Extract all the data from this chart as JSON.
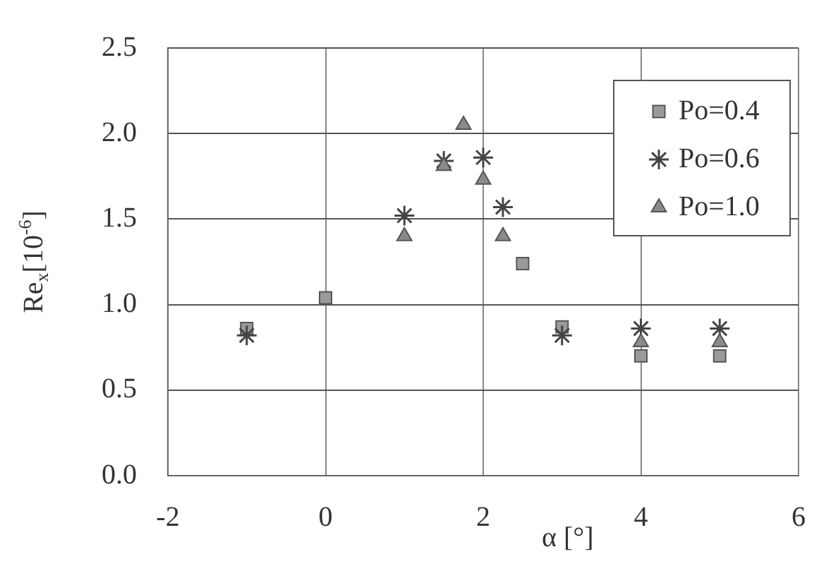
{
  "chart_data": {
    "type": "scatter",
    "xlabel": "α [°]",
    "ylabel": "Re$_{x}$[10$^{-6}$]",
    "xlim": [
      -2,
      6
    ],
    "xticks": [
      -2,
      0,
      2,
      4,
      6
    ],
    "ylim": [
      0,
      2.5
    ],
    "yticks": [
      {
        "value": 0,
        "label": "0.0"
      },
      {
        "value": 0.5,
        "label": "0.5"
      },
      {
        "value": 1,
        "label": "1.0"
      },
      {
        "value": 1.5,
        "label": "1.5"
      },
      {
        "value": 2,
        "label": "2.0"
      },
      {
        "value": 2.5,
        "label": "2.5"
      }
    ],
    "grid": true,
    "legend": "top right",
    "series": [
      {
        "name": "Po=0.4",
        "color": "#9a9a9a",
        "marker": "square",
        "x": [
          -1,
          0,
          2.5,
          3,
          4,
          5
        ],
        "values": [
          0.86,
          1.04,
          1.24,
          0.87,
          0.7,
          0.7
        ]
      },
      {
        "name": "Po=0.6",
        "color": "#444444",
        "marker": "cross",
        "x": [
          -1,
          0,
          1,
          1.5,
          2,
          2.25,
          3,
          4,
          5
        ],
        "values": [
          0.82,
          null,
          1.52,
          1.84,
          1.86,
          1.57,
          0.82,
          0.86,
          0.86
        ]
      },
      {
        "name": "Po=1.0",
        "color": "#8a8a8a",
        "marker": "triangle",
        "x": [
          1,
          1.5,
          1.75,
          2,
          2.25,
          4,
          5
        ],
        "values": [
          1.4,
          1.81,
          2.05,
          1.73,
          1.4,
          0.78,
          0.78
        ]
      }
    ]
  }
}
